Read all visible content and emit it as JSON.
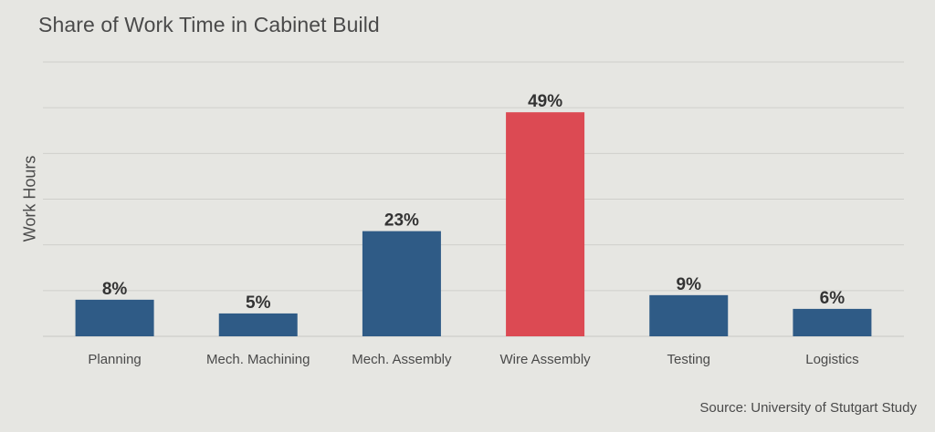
{
  "chart_data": {
    "type": "bar",
    "title": "Share of Work Time in Cabinet Build",
    "xlabel": "",
    "ylabel": "Work Hours",
    "categories": [
      "Planning",
      "Mech. Machining",
      "Mech. Assembly",
      "Wire Assembly",
      "Testing",
      "Logistics"
    ],
    "values": [
      8,
      5,
      23,
      49,
      9,
      6
    ],
    "data_labels": [
      "8%",
      "5%",
      "23%",
      "49%",
      "9%",
      "6%"
    ],
    "ylim": [
      0,
      60
    ],
    "grid": true,
    "legend": "none",
    "y_tick_labels_shown": false,
    "highlight_category": "Wire Assembly",
    "source": "Source: University of Stutgart Study",
    "colors": {
      "bar": "#2f5b86",
      "highlight": "#dc4a53",
      "grid": "#cfcfcb",
      "background": "#e6e6e2"
    }
  }
}
